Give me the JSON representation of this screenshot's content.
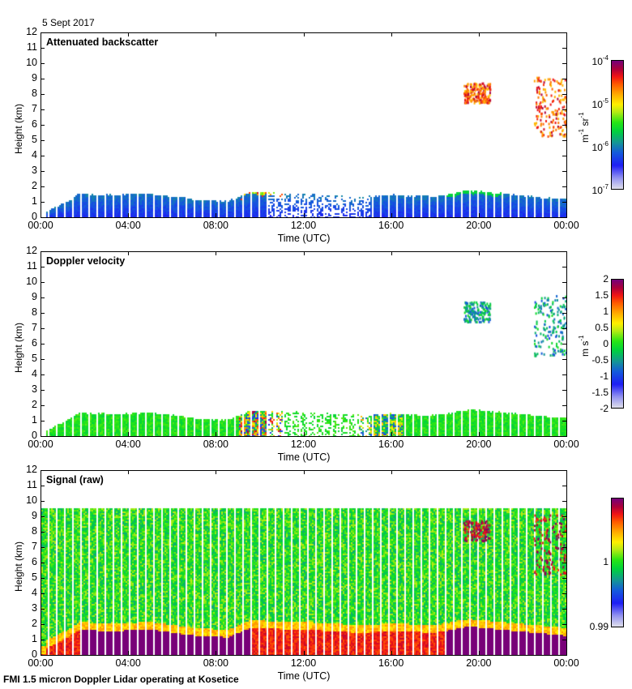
{
  "header": {
    "date": "5 Sept 2017"
  },
  "footer": {
    "caption": "FMI 1.5 micron Doppler Lidar operating at Kosetice"
  },
  "chart_data": [
    {
      "type": "heatmap",
      "title": "Attenuated backscatter",
      "xlabel": "Time (UTC)",
      "ylabel": "Height (km)",
      "x_ticks": [
        "00:00",
        "04:00",
        "08:00",
        "12:00",
        "16:00",
        "20:00",
        "00:00"
      ],
      "xlim_hours": [
        0,
        24
      ],
      "y_ticks": [
        "0",
        "1",
        "2",
        "3",
        "4",
        "5",
        "6",
        "7",
        "8",
        "9",
        "10",
        "11",
        "12"
      ],
      "ylim_km": [
        0,
        12
      ],
      "colorbar": {
        "scale": "log",
        "range": [
          1e-07,
          0.0001
        ],
        "ticks": [
          "10-7",
          "10-6",
          "10-5",
          "10-4"
        ],
        "label": "m-1 sr-1"
      },
      "features": [
        {
          "name": "boundary layer aerosol",
          "time_range_h": [
            0.2,
            24
          ],
          "top_km_profile": [
            [
              0.2,
              0.4
            ],
            [
              1.2,
              1.1
            ],
            [
              1.7,
              1.6
            ],
            [
              3,
              1.5
            ],
            [
              5,
              1.6
            ],
            [
              7,
              1.2
            ],
            [
              8.5,
              1.1
            ],
            [
              9.5,
              1.7
            ],
            [
              12,
              1.6
            ],
            [
              14.5,
              1.4
            ],
            [
              16,
              1.5
            ],
            [
              18,
              1.4
            ],
            [
              19.5,
              1.8
            ],
            [
              21,
              1.6
            ],
            [
              24,
              1.2
            ]
          ],
          "level": "1e-6 to 3e-6"
        },
        {
          "name": "mid-level cloud",
          "time_range_h": [
            19.3,
            20.5
          ],
          "height_km": [
            7.5,
            8.8
          ],
          "level": "2e-5 to 5e-5"
        },
        {
          "name": "mid-level cloud",
          "time_range_h": [
            22.5,
            24
          ],
          "height_km": [
            5.3,
            9.2
          ],
          "level": "2e-5 to 1e-4"
        }
      ]
    },
    {
      "type": "heatmap",
      "title": "Doppler velocity",
      "xlabel": "Time (UTC)",
      "ylabel": "Height (km)",
      "x_ticks": [
        "00:00",
        "04:00",
        "08:00",
        "12:00",
        "16:00",
        "20:00",
        "00:00"
      ],
      "xlim_hours": [
        0,
        24
      ],
      "y_ticks": [
        "0",
        "1",
        "2",
        "3",
        "4",
        "5",
        "6",
        "7",
        "8",
        "9",
        "10",
        "11",
        "12"
      ],
      "ylim_km": [
        0,
        12
      ],
      "colorbar": {
        "scale": "linear",
        "range": [
          -2,
          2
        ],
        "ticks": [
          "2",
          "1.5",
          "1",
          "0.5",
          "0",
          "-0.5",
          "-1",
          "-1.5",
          "-2"
        ],
        "label": "m s-1"
      },
      "features": [
        {
          "name": "boundary layer velocity",
          "time_range_h": [
            0.2,
            24
          ],
          "value_ms": 0
        },
        {
          "name": "convective mixing",
          "time_range_h": [
            9,
            12.5
          ],
          "value_range_ms": [
            -1.5,
            1.5
          ]
        },
        {
          "name": "cloud fall speed",
          "time_range_h": [
            19.3,
            24
          ],
          "value_range_ms": [
            -1.2,
            0
          ]
        }
      ]
    },
    {
      "type": "heatmap",
      "title": "Signal (raw)",
      "xlabel": "Time (UTC)",
      "ylabel": "Height (km)",
      "x_ticks": [
        "00:00",
        "04:00",
        "08:00",
        "12:00",
        "16:00",
        "20:00",
        "00:00"
      ],
      "xlim_hours": [
        0,
        24
      ],
      "y_ticks": [
        "0",
        "1",
        "2",
        "3",
        "4",
        "5",
        "6",
        "7",
        "8",
        "9",
        "10",
        "11",
        "12"
      ],
      "ylim_km": [
        0,
        12
      ],
      "data_top_km": 9.6,
      "colorbar": {
        "scale": "linear",
        "range": [
          0.99,
          1.01
        ],
        "ticks": [
          "1",
          "0.99"
        ],
        "label": ""
      }
    }
  ]
}
